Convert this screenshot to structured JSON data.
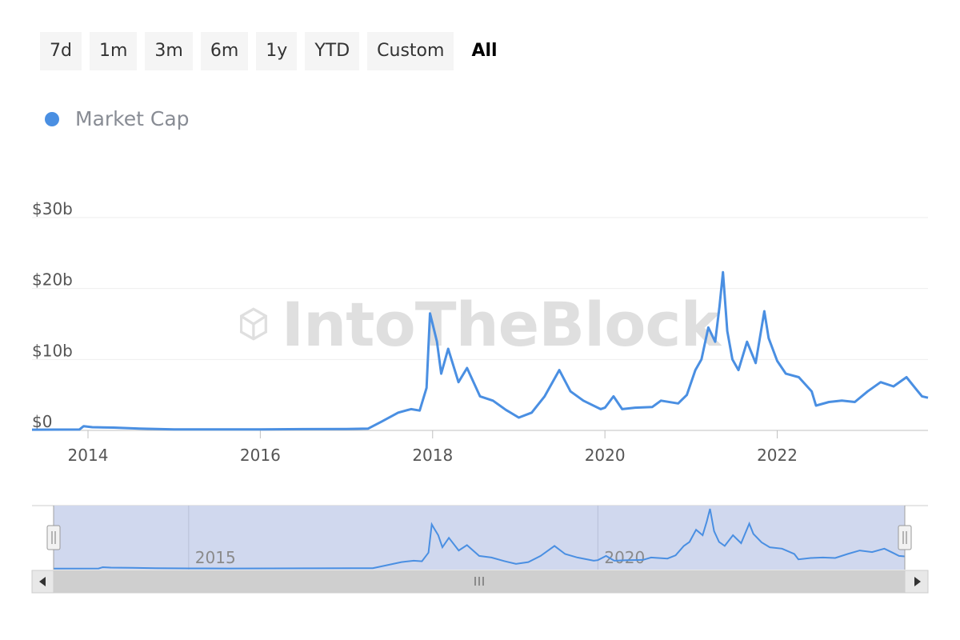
{
  "range_buttons": [
    {
      "label": "7d"
    },
    {
      "label": "1m"
    },
    {
      "label": "3m"
    },
    {
      "label": "6m"
    },
    {
      "label": "1y"
    },
    {
      "label": "YTD"
    },
    {
      "label": "Custom"
    },
    {
      "label": "All"
    }
  ],
  "active_range": "All",
  "watermark": "IntoTheBlock",
  "colors": {
    "series": "#4a8fe2",
    "navigator_fill": "#d0d8ee",
    "grid": "#eeeeee"
  },
  "chart_data": {
    "type": "line",
    "legend": {
      "entries": [
        "Market Cap"
      ],
      "placement": "top-left"
    },
    "xlabel": "",
    "ylabel": "",
    "x_range": [
      2013.35,
      2023.75
    ],
    "ylim": [
      0,
      30
    ],
    "y_ticks": [
      {
        "value": 0,
        "label": "$0"
      },
      {
        "value": 10,
        "label": "$10b"
      },
      {
        "value": 20,
        "label": "$20b"
      },
      {
        "value": 30,
        "label": "$30b"
      }
    ],
    "x_ticks": [
      {
        "value": 2014,
        "label": "2014"
      },
      {
        "value": 2016,
        "label": "2016"
      },
      {
        "value": 2018,
        "label": "2018"
      },
      {
        "value": 2020,
        "label": "2020"
      },
      {
        "value": 2022,
        "label": "2022"
      }
    ],
    "grid": true,
    "series": [
      {
        "name": "Market Cap",
        "unit": "billion USD",
        "points": [
          [
            2013.35,
            0.1
          ],
          [
            2013.9,
            0.12
          ],
          [
            2013.95,
            0.6
          ],
          [
            2014.05,
            0.45
          ],
          [
            2014.3,
            0.4
          ],
          [
            2014.6,
            0.25
          ],
          [
            2015.0,
            0.15
          ],
          [
            2015.5,
            0.13
          ],
          [
            2016.0,
            0.15
          ],
          [
            2016.5,
            0.18
          ],
          [
            2017.0,
            0.2
          ],
          [
            2017.25,
            0.25
          ],
          [
            2017.4,
            1.2
          ],
          [
            2017.6,
            2.5
          ],
          [
            2017.75,
            3.0
          ],
          [
            2017.85,
            2.8
          ],
          [
            2017.93,
            6.0
          ],
          [
            2017.97,
            16.5
          ],
          [
            2018.0,
            15.0
          ],
          [
            2018.05,
            12.5
          ],
          [
            2018.1,
            8.0
          ],
          [
            2018.18,
            11.5
          ],
          [
            2018.3,
            6.8
          ],
          [
            2018.4,
            8.8
          ],
          [
            2018.55,
            4.8
          ],
          [
            2018.7,
            4.2
          ],
          [
            2018.85,
            2.9
          ],
          [
            2019.0,
            1.8
          ],
          [
            2019.15,
            2.5
          ],
          [
            2019.3,
            4.8
          ],
          [
            2019.47,
            8.5
          ],
          [
            2019.6,
            5.5
          ],
          [
            2019.75,
            4.2
          ],
          [
            2019.95,
            3.0
          ],
          [
            2020.0,
            3.2
          ],
          [
            2020.1,
            4.8
          ],
          [
            2020.2,
            3.0
          ],
          [
            2020.35,
            3.2
          ],
          [
            2020.55,
            3.3
          ],
          [
            2020.65,
            4.2
          ],
          [
            2020.85,
            3.8
          ],
          [
            2020.95,
            5.0
          ],
          [
            2021.05,
            8.5
          ],
          [
            2021.12,
            10.0
          ],
          [
            2021.2,
            14.5
          ],
          [
            2021.28,
            12.5
          ],
          [
            2021.33,
            17.5
          ],
          [
            2021.37,
            22.3
          ],
          [
            2021.42,
            14.0
          ],
          [
            2021.48,
            10.0
          ],
          [
            2021.55,
            8.5
          ],
          [
            2021.65,
            12.5
          ],
          [
            2021.75,
            9.5
          ],
          [
            2021.85,
            16.8
          ],
          [
            2021.9,
            13.0
          ],
          [
            2022.0,
            9.8
          ],
          [
            2022.1,
            8.0
          ],
          [
            2022.25,
            7.5
          ],
          [
            2022.4,
            5.5
          ],
          [
            2022.45,
            3.5
          ],
          [
            2022.6,
            4.0
          ],
          [
            2022.75,
            4.2
          ],
          [
            2022.9,
            4.0
          ],
          [
            2023.05,
            5.5
          ],
          [
            2023.2,
            6.8
          ],
          [
            2023.35,
            6.2
          ],
          [
            2023.5,
            7.5
          ],
          [
            2023.6,
            6.0
          ],
          [
            2023.68,
            4.8
          ],
          [
            2023.75,
            4.6
          ]
        ]
      }
    ]
  },
  "navigator": {
    "tick_labels": [
      {
        "value": 2015,
        "label": "2015"
      },
      {
        "value": 2020,
        "label": "2020"
      }
    ],
    "selection": [
      0.0,
      1.0
    ]
  }
}
